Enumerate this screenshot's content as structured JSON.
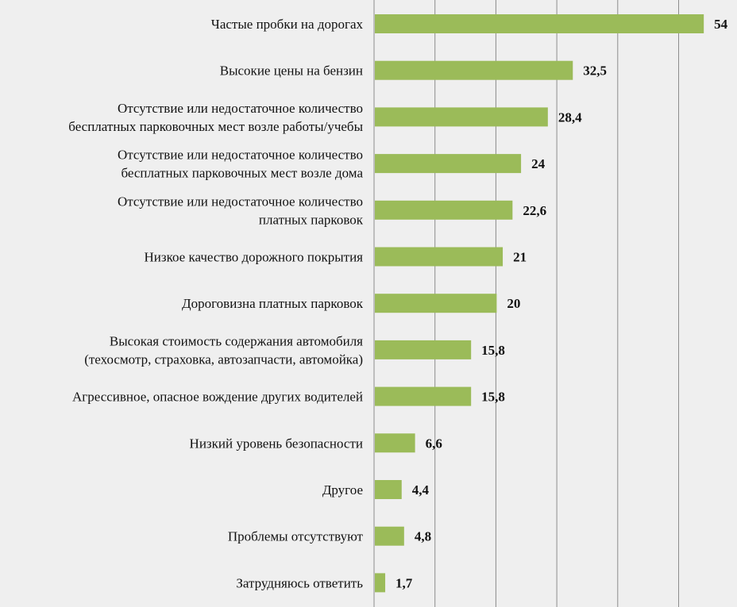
{
  "chart_data": {
    "type": "bar",
    "orientation": "horizontal",
    "categories": [
      [
        "Частые пробки на дорогах"
      ],
      [
        "Высокие цены на бензин"
      ],
      [
        "Отсутствие или недостаточное количество",
        "бесплатных парковочных мест возле работы/учебы"
      ],
      [
        "Отсутствие или недостаточное количество",
        "бесплатных парковочных мест возле дома"
      ],
      [
        "Отсутствие или недостаточное количество",
        "платных парковок"
      ],
      [
        "Низкое качество дорожного покрытия"
      ],
      [
        "Дороговизна платных парковок"
      ],
      [
        "Высокая стоимость содержания автомобиля",
        "(техосмотр, страховка, автозапчасти, автомойка)"
      ],
      [
        "Агрессивное, опасное вождение других водителей"
      ],
      [
        "Низкий уровень безопасности"
      ],
      [
        "Другое"
      ],
      [
        "Проблемы отсутствуют"
      ],
      [
        "Затрудняюсь ответить"
      ]
    ],
    "values": [
      54,
      32.5,
      28.4,
      24,
      22.6,
      21,
      20,
      15.8,
      15.8,
      6.6,
      4.4,
      4.8,
      1.7
    ],
    "value_labels": [
      "54",
      "32,5",
      "28,4",
      "24",
      "22,6",
      "21",
      "20",
      "15,8",
      "15,8",
      "6,6",
      "4,4",
      "4,8",
      "1,7"
    ],
    "xlim": [
      0,
      60
    ],
    "grid_step": 10,
    "grid": true,
    "title": "",
    "xlabel": "",
    "ylabel": "",
    "colors": {
      "bar": "#9bbb59",
      "background": "#efefef",
      "grid": "#8c8c8c",
      "text": "#111111"
    }
  }
}
